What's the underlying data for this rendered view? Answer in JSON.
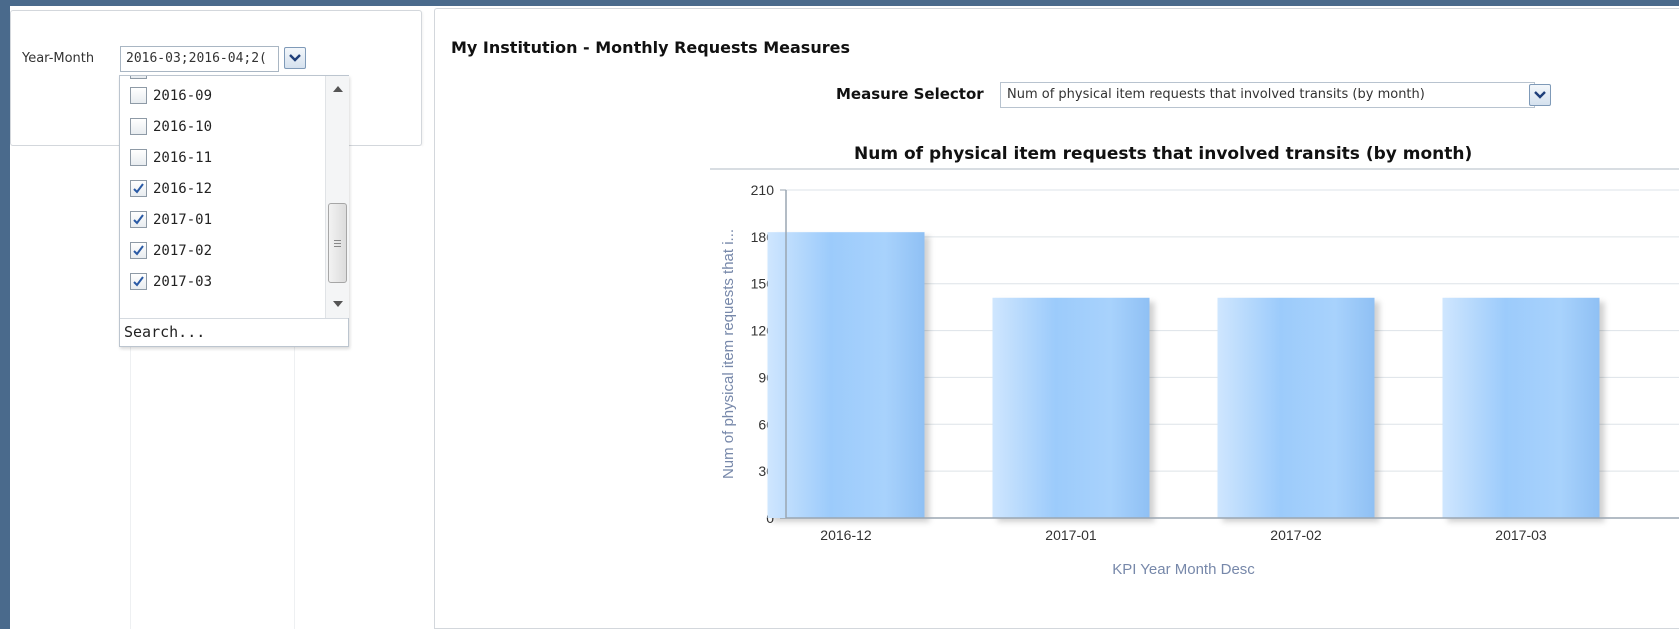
{
  "prompt": {
    "label": "Year-Month",
    "value": "2016-03;2016-04;2(",
    "options": [
      {
        "label": "2016-09",
        "checked": false
      },
      {
        "label": "2016-10",
        "checked": false
      },
      {
        "label": "2016-11",
        "checked": false
      },
      {
        "label": "2016-12",
        "checked": true
      },
      {
        "label": "2017-01",
        "checked": true
      },
      {
        "label": "2017-02",
        "checked": true
      },
      {
        "label": "2017-03",
        "checked": true
      }
    ],
    "search_label": "Search..."
  },
  "main": {
    "title": "My Institution - Monthly Requests Measures",
    "measure_selector_label": "Measure Selector",
    "measure_selector_value": "Num of physical item requests that involved transits (by month)"
  },
  "chart_data": {
    "type": "bar",
    "title": "Num of physical item requests that involved transits (by month)",
    "xlabel": "KPI Year Month Desc",
    "ylabel": "Num of physical item requests that i...",
    "categories": [
      "2016-12",
      "2017-01",
      "2017-02",
      "2017-03"
    ],
    "values": [
      183,
      141,
      141,
      141
    ],
    "ylim": [
      0,
      210
    ],
    "yticks": [
      0,
      30,
      60,
      90,
      120,
      150,
      180,
      210
    ],
    "grid": true,
    "legend": "none",
    "bar_color": "#9ccbfb"
  },
  "colors": {
    "frame": "#4a6a8c",
    "axis_text": "#7788aa",
    "bar_light": "#cfe6fe",
    "bar_main": "#9ccbfb"
  }
}
